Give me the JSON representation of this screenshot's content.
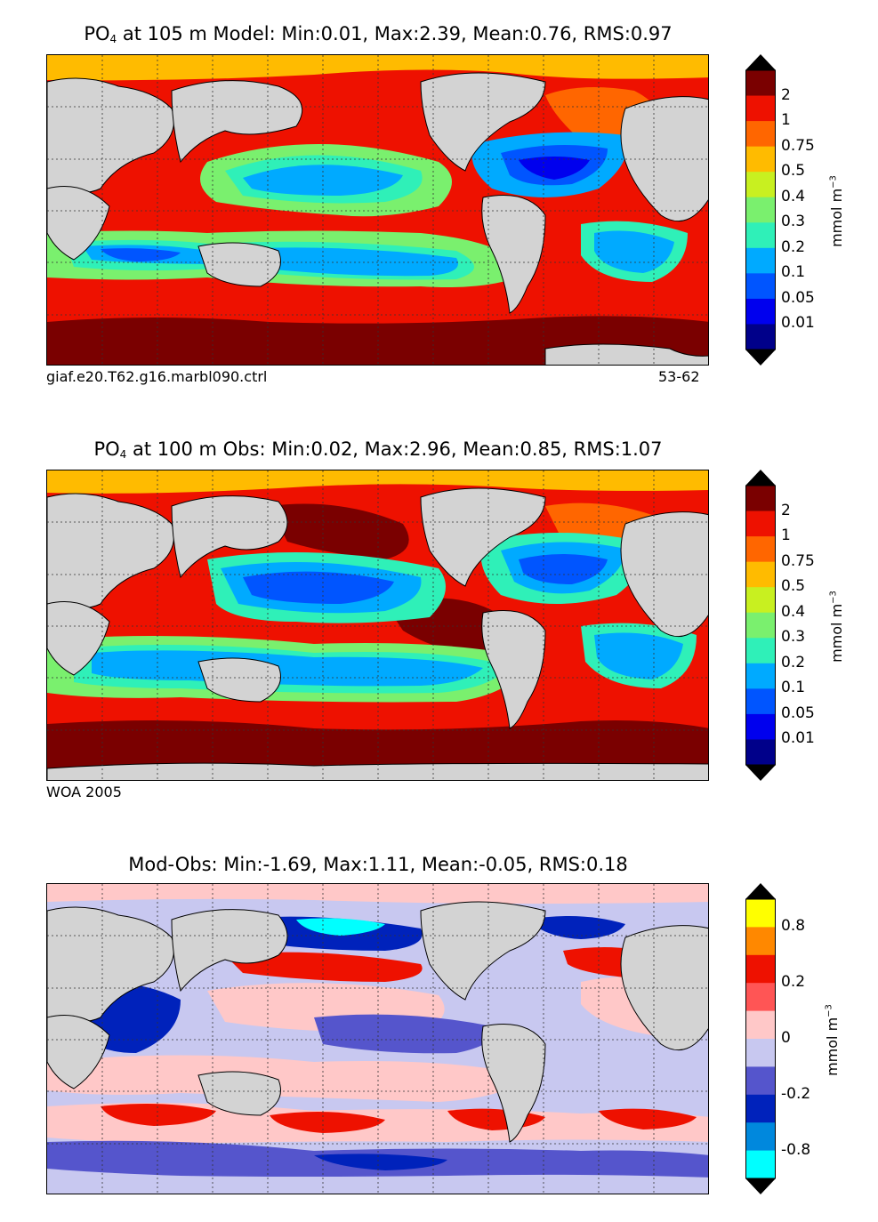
{
  "panels": [
    {
      "title_prefix": "PO",
      "title_sub": "4",
      "title_rest": " at 105 m Model: Min:0.01, Max:2.39, Mean:0.76, RMS:0.97",
      "caption_left": "giaf.e20.T62.g16.marbl090.ctrl",
      "caption_right": "53-62",
      "colorbar": {
        "ticks": [
          "2",
          "1",
          "0.75",
          "0.5",
          "0.4",
          "0.3",
          "0.2",
          "0.1",
          "0.05",
          "0.01"
        ],
        "colors": [
          "#7a0000",
          "#ee1100",
          "#ff6600",
          "#ffbb00",
          "#c8f020",
          "#7af06e",
          "#2ff0b8",
          "#00aaff",
          "#0055ff",
          "#0000ee",
          "#00008a"
        ],
        "arrow_top": "#000000",
        "arrow_bottom": "#000000",
        "units": "mmol m",
        "units_sup": "−3"
      }
    },
    {
      "title_prefix": "PO",
      "title_sub": "4",
      "title_rest": " at 100 m Obs: Min:0.02, Max:2.96, Mean:0.85, RMS:1.07",
      "caption_left": "WOA 2005",
      "caption_right": "",
      "colorbar": {
        "ticks": [
          "2",
          "1",
          "0.75",
          "0.5",
          "0.4",
          "0.3",
          "0.2",
          "0.1",
          "0.05",
          "0.01"
        ],
        "colors": [
          "#7a0000",
          "#ee1100",
          "#ff6600",
          "#ffbb00",
          "#c8f020",
          "#7af06e",
          "#2ff0b8",
          "#00aaff",
          "#0055ff",
          "#0000ee",
          "#00008a"
        ],
        "arrow_top": "#000000",
        "arrow_bottom": "#000000",
        "units": "mmol m",
        "units_sup": "−3"
      }
    },
    {
      "title_prefix": "",
      "title_sub": "",
      "title_rest": "Mod-Obs: Min:-1.69, Max:1.11, Mean:-0.05, RMS:0.18",
      "caption_left": "",
      "caption_right": "",
      "colorbar": {
        "ticks": [
          "0.8",
          "0.2",
          "0",
          "-0.2",
          "-0.8"
        ],
        "colors": [
          "#ffff00",
          "#ff8800",
          "#ee1100",
          "#ff5555",
          "#ffc8c8",
          "#c8c8f0",
          "#5555cc",
          "#0022bb",
          "#0088dd",
          "#00ffff"
        ],
        "arrow_top": "#000000",
        "arrow_bottom": "#000000",
        "units": "mmol m",
        "units_sup": "−3"
      }
    }
  ],
  "chart_data": [
    {
      "type": "heatmap",
      "title": "PO4 at 105 m Model: Min:0.01, Max:2.39, Mean:0.76, RMS:0.97",
      "variable": "PO4",
      "depth_m": 105,
      "source": "giaf.e20.T62.g16.marbl090.ctrl",
      "years": "53-62",
      "stats": {
        "min": 0.01,
        "max": 2.39,
        "mean": 0.76,
        "rms": 0.97
      },
      "levels": [
        0.01,
        0.05,
        0.1,
        0.2,
        0.3,
        0.4,
        0.5,
        0.75,
        1,
        2
      ],
      "units": "mmol m-3",
      "xlim": [
        30,
        390
      ],
      "ylim": [
        -80,
        90
      ]
    },
    {
      "type": "heatmap",
      "title": "PO4 at 100 m Obs: Min:0.02, Max:2.96, Mean:0.85, RMS:1.07",
      "variable": "PO4",
      "depth_m": 100,
      "source": "WOA 2005",
      "stats": {
        "min": 0.02,
        "max": 2.96,
        "mean": 0.85,
        "rms": 1.07
      },
      "levels": [
        0.01,
        0.05,
        0.1,
        0.2,
        0.3,
        0.4,
        0.5,
        0.75,
        1,
        2
      ],
      "units": "mmol m-3",
      "xlim": [
        30,
        390
      ],
      "ylim": [
        -80,
        90
      ]
    },
    {
      "type": "heatmap",
      "title": "Mod-Obs: Min:-1.69, Max:1.11, Mean:-0.05, RMS:0.18",
      "stats": {
        "min": -1.69,
        "max": 1.11,
        "mean": -0.05,
        "rms": 0.18
      },
      "levels": [
        -0.8,
        -0.4,
        -0.2,
        -0.1,
        0,
        0.1,
        0.2,
        0.4,
        0.8
      ],
      "tick_labels": [
        -0.8,
        -0.2,
        0,
        0.2,
        0.8
      ],
      "units": "mmol m-3",
      "xlim": [
        30,
        390
      ],
      "ylim": [
        -80,
        90
      ]
    }
  ]
}
